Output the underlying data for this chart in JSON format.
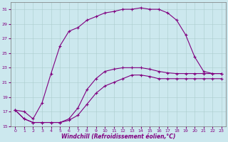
{
  "xlabel": "Windchill (Refroidissement éolien,°C)",
  "background_color": "#cce8ee",
  "line_color": "#800080",
  "xlim": [
    -0.5,
    23.5
  ],
  "ylim": [
    15,
    32
  ],
  "xticks": [
    0,
    1,
    2,
    3,
    4,
    5,
    6,
    7,
    8,
    9,
    10,
    11,
    12,
    13,
    14,
    15,
    16,
    17,
    18,
    19,
    20,
    21,
    22,
    23
  ],
  "yticks": [
    15,
    17,
    19,
    21,
    23,
    25,
    27,
    29,
    31
  ],
  "series": [
    {
      "x": [
        0,
        1,
        2,
        3,
        4,
        5,
        6,
        7,
        8,
        9,
        10,
        11,
        12,
        13,
        14,
        15,
        16,
        17,
        18,
        19,
        20,
        21,
        22,
        23
      ],
      "y": [
        17.2,
        17.0,
        16.0,
        18.2,
        22.2,
        26.0,
        28.0,
        28.5,
        29.5,
        30.0,
        30.5,
        30.7,
        31.0,
        31.0,
        31.2,
        31.0,
        31.0,
        30.5,
        29.5,
        27.5,
        24.5,
        22.5,
        22.2,
        22.2
      ]
    },
    {
      "x": [
        0,
        1,
        2,
        3,
        4,
        5,
        6,
        7,
        8,
        9,
        10,
        11,
        12,
        13,
        14,
        15,
        16,
        17,
        18,
        19,
        20,
        21,
        22,
        23
      ],
      "y": [
        17.2,
        16.0,
        15.5,
        15.5,
        15.5,
        15.5,
        16.0,
        17.5,
        20.0,
        21.5,
        22.5,
        22.8,
        23.0,
        23.0,
        23.0,
        22.8,
        22.5,
        22.3,
        22.2,
        22.2,
        22.2,
        22.2,
        22.2,
        22.2
      ]
    },
    {
      "x": [
        0,
        1,
        2,
        3,
        4,
        5,
        6,
        7,
        8,
        9,
        10,
        11,
        12,
        13,
        14,
        15,
        16,
        17,
        18,
        19,
        20,
        21,
        22,
        23
      ],
      "y": [
        17.2,
        16.0,
        15.5,
        15.5,
        15.5,
        15.5,
        15.8,
        16.5,
        18.0,
        19.5,
        20.5,
        21.0,
        21.5,
        22.0,
        22.0,
        21.8,
        21.5,
        21.5,
        21.5,
        21.5,
        21.5,
        21.5,
        21.5,
        21.5
      ]
    }
  ]
}
